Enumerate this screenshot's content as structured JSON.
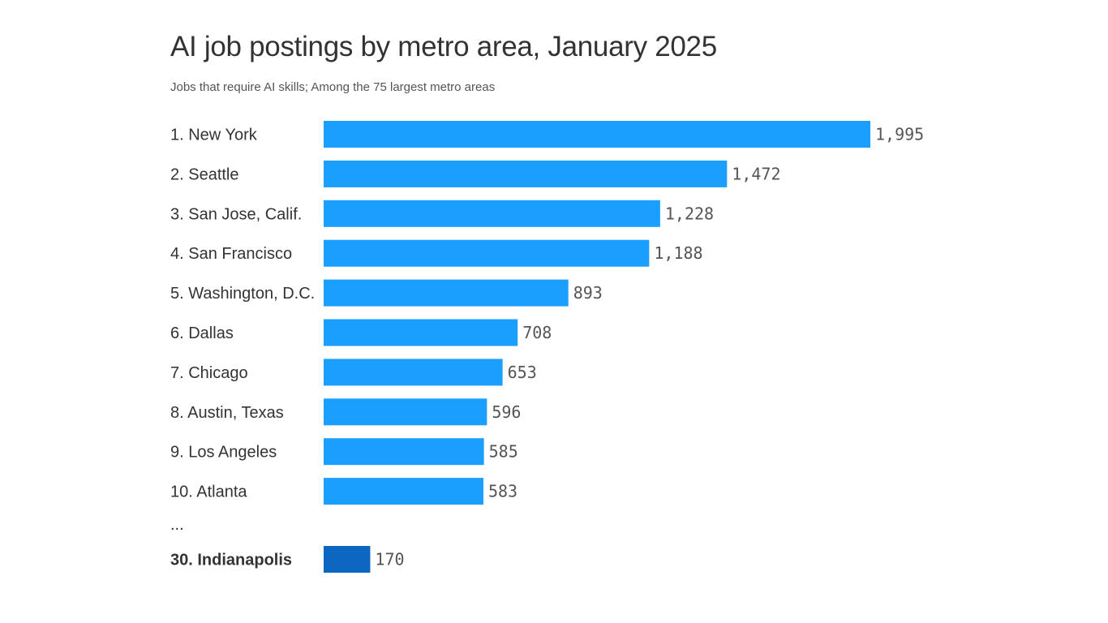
{
  "chart_data": {
    "type": "bar",
    "orientation": "horizontal",
    "title": "AI job postings by metro area, January 2025",
    "subtitle": "Jobs that require AI skills; Among the 75 largest metro areas",
    "categories": [
      "1. New York",
      "2. Seattle",
      "3. San Jose, Calif.",
      "4. San Francisco",
      "5. Washington, D.C.",
      "6. Dallas",
      "7. Chicago",
      "8. Austin, Texas",
      "9. Los Angeles",
      "10. Atlanta"
    ],
    "values": [
      1995,
      1472,
      1228,
      1188,
      893,
      708,
      653,
      596,
      585,
      583
    ],
    "value_labels": [
      "1,995",
      "1,472",
      "1,228",
      "1,188",
      "893",
      "708",
      "653",
      "596",
      "585",
      "583"
    ],
    "ellipsis": "...",
    "highlight": {
      "category": "30. Indianapolis",
      "value": 170,
      "value_label": "170"
    },
    "xlim": [
      0,
      1995
    ],
    "grid": false,
    "legend": "none",
    "colors": {
      "bar": "#1a9fff",
      "highlight_bar": "#0d67c1"
    }
  }
}
